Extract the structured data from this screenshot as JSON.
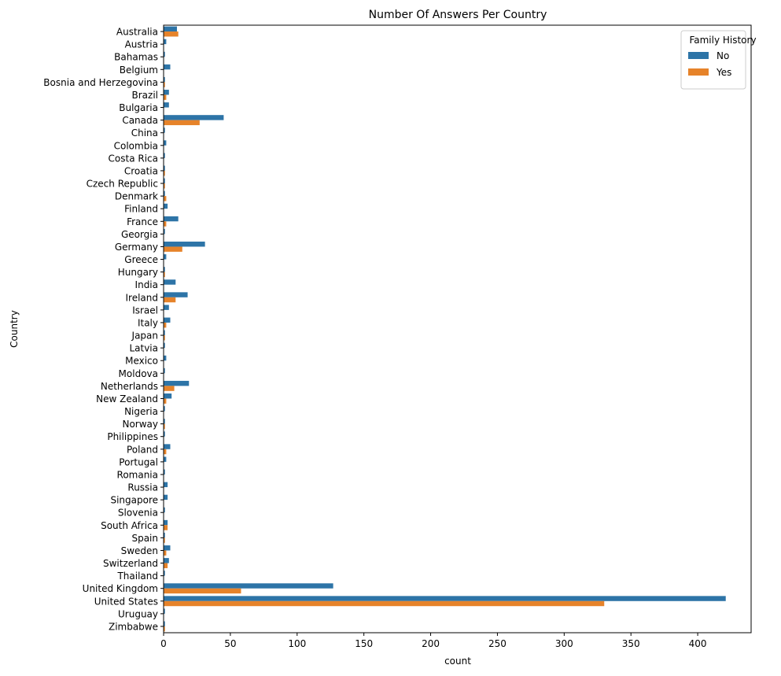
{
  "chart_data": {
    "type": "bar",
    "orientation": "horizontal",
    "title": "Number Of Answers Per Country",
    "xlabel": "count",
    "ylabel": "Country",
    "xlim": [
      0,
      440
    ],
    "xticks": [
      0,
      50,
      100,
      150,
      200,
      250,
      300,
      350,
      400
    ],
    "grid": false,
    "legend": {
      "title": "Family History",
      "placement": "top-right"
    },
    "categories": [
      "Australia",
      "Austria",
      "Bahamas",
      "Belgium",
      "Bosnia and Herzegovina",
      "Brazil",
      "Bulgaria",
      "Canada",
      "China",
      "Colombia",
      "Costa Rica",
      "Croatia",
      "Czech Republic",
      "Denmark",
      "Finland",
      "France",
      "Georgia",
      "Germany",
      "Greece",
      "Hungary",
      "India",
      "Ireland",
      "Israel",
      "Italy",
      "Japan",
      "Latvia",
      "Mexico",
      "Moldova",
      "Netherlands",
      "New Zealand",
      "Nigeria",
      "Norway",
      "Philippines",
      "Poland",
      "Portugal",
      "Romania",
      "Russia",
      "Singapore",
      "Slovenia",
      "South Africa",
      "Spain",
      "Sweden",
      "Switzerland",
      "Thailand",
      "United Kingdom",
      "United States",
      "Uruguay",
      "Zimbabwe"
    ],
    "series": [
      {
        "name": "No",
        "color": "#2d74a7",
        "values": [
          10,
          2,
          1,
          5,
          1,
          4,
          4,
          45,
          1,
          2,
          1,
          1,
          1,
          1,
          3,
          11,
          1,
          31,
          2,
          1,
          9,
          18,
          4,
          5,
          1,
          1,
          2,
          1,
          19,
          6,
          1,
          1,
          1,
          5,
          2,
          1,
          3,
          3,
          1,
          3,
          1,
          5,
          4,
          1,
          127,
          421,
          1,
          1
        ]
      },
      {
        "name": "Yes",
        "color": "#e6832a",
        "values": [
          11,
          0,
          0,
          0,
          1,
          2,
          0,
          27,
          0,
          0,
          0,
          1,
          1,
          2,
          0,
          2,
          0,
          14,
          0,
          1,
          0,
          9,
          0,
          2,
          1,
          0,
          0,
          0,
          8,
          2,
          0,
          1,
          0,
          2,
          0,
          0,
          0,
          0,
          0,
          3,
          1,
          2,
          3,
          0,
          58,
          330,
          0,
          1
        ]
      }
    ]
  }
}
